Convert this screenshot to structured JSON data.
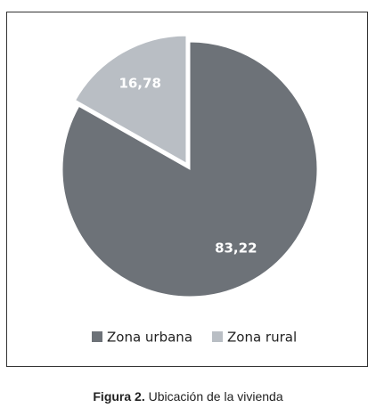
{
  "chart_data": {
    "type": "pie",
    "categories": [
      "Zona urbana",
      "Zona rural"
    ],
    "values": [
      83.22,
      16.78
    ],
    "value_labels": [
      "83,22",
      "16,78"
    ],
    "colors": [
      "#6d7278",
      "#b9bec4"
    ],
    "exploded": [
      false,
      true
    ],
    "legend": "bottom",
    "caption_label": "Figura 2.",
    "caption": "Ubicación de la vivienda"
  }
}
